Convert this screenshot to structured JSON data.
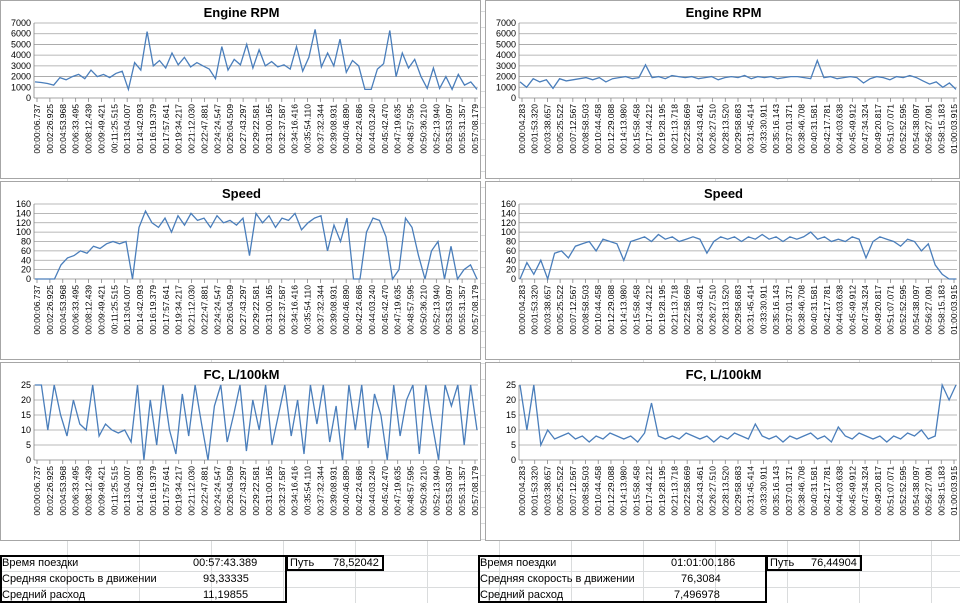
{
  "colors": {
    "line": "#4a7ebb",
    "grid": "#868686",
    "text": "#000000"
  },
  "left_ticks": [
    "00:00:06.737",
    "00:02:26.925",
    "00:04:53.968",
    "00:06:33.495",
    "00:08:12.439",
    "00:09:49.421",
    "00:11:25.515",
    "00:13:04.007",
    "00:14:42.093",
    "00:16:19.379",
    "00:17:57.641",
    "00:19:34.217",
    "00:21:12.030",
    "00:22:47.881",
    "00:24:24.547",
    "00:26:04.509",
    "00:27:43.297",
    "00:29:22.581",
    "00:31:00.165",
    "00:32:37.587",
    "00:34:16.416",
    "00:35:54.110",
    "00:37:32.344",
    "00:39:08.931",
    "00:40:46.890",
    "00:42:24.686",
    "00:44:03.240",
    "00:45:42.470",
    "00:47:19.635",
    "00:48:57.595",
    "00:50:36.210",
    "00:52:13.940",
    "00:53:53.097",
    "00:55:31.357",
    "00:57:08.179"
  ],
  "right_ticks": [
    "00:00:04.283",
    "00:01:53.320",
    "00:03:38.657",
    "00:05:25.522",
    "00:07:12.567",
    "00:08:58.503",
    "00:10:44.458",
    "00:12:29.088",
    "00:14:13.980",
    "00:15:58.458",
    "00:17:44.212",
    "00:19:28.195",
    "00:21:13.718",
    "00:22:58.669",
    "00:24:43.461",
    "00:26:27.510",
    "00:28:13.520",
    "00:29:58.683",
    "00:31:45.414",
    "00:33:30.911",
    "00:35:16.143",
    "00:37:01.371",
    "00:38:46.708",
    "00:40:31.581",
    "00:42:17.781",
    "00:44:03.638",
    "00:45:49.912",
    "00:47:34.324",
    "00:49:20.817",
    "00:51:07.071",
    "00:52:52.595",
    "00:54:38.097",
    "00:56:27.091",
    "00:58:15.183",
    "01:00:03.915"
  ],
  "chart_data": [
    {
      "id": "rpm-left",
      "type": "line",
      "title": "Engine RPM",
      "ticks": "left_ticks",
      "ylim": [
        0,
        7000
      ],
      "ystep": 1000,
      "yticks": [
        "0",
        "1000",
        "2000",
        "3000",
        "4000",
        "5000",
        "6000",
        "7000"
      ],
      "values": [
        1500,
        1450,
        1350,
        1200,
        1900,
        1700,
        2000,
        2200,
        1800,
        2600,
        2000,
        2200,
        1900,
        2300,
        2500,
        800,
        3300,
        2600,
        6200,
        3000,
        3500,
        2800,
        4200,
        3100,
        3800,
        2900,
        3300,
        3000,
        2700,
        1800,
        4800,
        2600,
        3600,
        3100,
        5000,
        2800,
        4500,
        3000,
        3400,
        2900,
        3100,
        2700,
        4800,
        2500,
        3800,
        6400,
        2900,
        4200,
        3000,
        5500,
        2400,
        3500,
        3000,
        800,
        800,
        2700,
        3200,
        6300,
        2000,
        4200,
        2800,
        3600,
        2000,
        900,
        2800,
        900,
        2000,
        800,
        2200,
        1200,
        1500,
        800
      ]
    },
    {
      "id": "rpm-right",
      "type": "line",
      "title": "Engine RPM",
      "ticks": "right_ticks",
      "ylim": [
        0,
        7000
      ],
      "ystep": 1000,
      "yticks": [
        "0",
        "1000",
        "2000",
        "3000",
        "4000",
        "5000",
        "6000",
        "7000"
      ],
      "values": [
        1500,
        1000,
        1800,
        1500,
        1700,
        900,
        1800,
        1600,
        1700,
        1800,
        1900,
        1700,
        1900,
        1500,
        1800,
        1900,
        2000,
        1800,
        1900,
        3100,
        1900,
        2000,
        1800,
        2100,
        2000,
        1900,
        2000,
        1800,
        1900,
        2000,
        1700,
        1900,
        2000,
        1900,
        2100,
        1800,
        2000,
        1900,
        2000,
        1800,
        1900,
        2000,
        2000,
        1900,
        1800,
        3500,
        1900,
        2000,
        1800,
        1900,
        2000,
        1900,
        1400,
        1800,
        2000,
        1900,
        1700,
        2000,
        1900,
        2100,
        1900,
        1600,
        1300,
        1500,
        1000,
        1400,
        800
      ]
    },
    {
      "id": "speed-left",
      "type": "line",
      "title": "Speed",
      "ticks": "left_ticks",
      "ylim": [
        0,
        160
      ],
      "ystep": 20,
      "yticks": [
        "0",
        "20",
        "40",
        "60",
        "80",
        "100",
        "120",
        "140",
        "160"
      ],
      "values": [
        0,
        0,
        0,
        0,
        30,
        45,
        50,
        60,
        55,
        70,
        65,
        75,
        80,
        75,
        80,
        0,
        110,
        145,
        120,
        110,
        130,
        100,
        135,
        115,
        140,
        125,
        130,
        110,
        135,
        120,
        125,
        115,
        130,
        50,
        140,
        120,
        135,
        110,
        130,
        125,
        140,
        105,
        120,
        130,
        135,
        60,
        115,
        80,
        130,
        0,
        0,
        100,
        130,
        125,
        90,
        0,
        20,
        130,
        110,
        50,
        0,
        60,
        80,
        0,
        70,
        0,
        20,
        30,
        0
      ]
    },
    {
      "id": "speed-right",
      "type": "line",
      "title": "Speed",
      "ticks": "right_ticks",
      "ylim": [
        0,
        160
      ],
      "ystep": 20,
      "yticks": [
        "0",
        "20",
        "40",
        "60",
        "80",
        "100",
        "120",
        "140",
        "160"
      ],
      "values": [
        0,
        35,
        10,
        40,
        0,
        55,
        60,
        45,
        70,
        75,
        80,
        60,
        85,
        80,
        75,
        40,
        80,
        85,
        90,
        80,
        95,
        85,
        90,
        80,
        85,
        90,
        85,
        55,
        80,
        90,
        85,
        90,
        80,
        90,
        85,
        95,
        85,
        90,
        80,
        90,
        85,
        90,
        100,
        85,
        90,
        80,
        85,
        80,
        90,
        85,
        45,
        80,
        90,
        85,
        80,
        70,
        85,
        80,
        60,
        75,
        30,
        10,
        0,
        0
      ]
    },
    {
      "id": "fc-left",
      "type": "line",
      "title": "FC, L/100kM",
      "ticks": "left_ticks",
      "ylim": [
        0,
        25
      ],
      "ystep": 5,
      "yticks": [
        "0",
        "5",
        "10",
        "15",
        "20",
        "25"
      ],
      "values": [
        25,
        25,
        10,
        25,
        15,
        8,
        20,
        12,
        10,
        25,
        8,
        12,
        10,
        9,
        10,
        6,
        25,
        0,
        20,
        5,
        25,
        10,
        2,
        22,
        8,
        25,
        12,
        0,
        18,
        25,
        6,
        15,
        25,
        3,
        20,
        10,
        25,
        5,
        15,
        25,
        8,
        20,
        2,
        25,
        12,
        25,
        6,
        18,
        0,
        25,
        10,
        25,
        4,
        22,
        15,
        0,
        25,
        8,
        20,
        25,
        2,
        25,
        12,
        0,
        25,
        18,
        25,
        5,
        25,
        10
      ]
    },
    {
      "id": "fc-right",
      "type": "line",
      "title": "FC, L/100kM",
      "ticks": "right_ticks",
      "ylim": [
        0,
        25
      ],
      "ystep": 5,
      "yticks": [
        "0",
        "5",
        "10",
        "15",
        "20",
        "25"
      ],
      "values": [
        25,
        10,
        25,
        5,
        10,
        7,
        8,
        9,
        7,
        8,
        6,
        8,
        7,
        9,
        8,
        7,
        8,
        6,
        9,
        19,
        8,
        7,
        8,
        7,
        9,
        8,
        7,
        8,
        6,
        8,
        7,
        9,
        8,
        7,
        12,
        8,
        7,
        8,
        6,
        8,
        7,
        8,
        9,
        7,
        8,
        6,
        11,
        8,
        7,
        9,
        8,
        7,
        8,
        6,
        8,
        7,
        9,
        8,
        10,
        7,
        8,
        25,
        20,
        25
      ]
    }
  ],
  "summary_left": {
    "trip_time_label": "Время поездки",
    "trip_time": "00:57:43.389",
    "avg_speed_label": "Средняя скорость в движении",
    "avg_speed": "93,33335",
    "avg_fc_label": "Средний расход",
    "avg_fc": "11,19855",
    "distance_label": "Путь",
    "distance": "78,52042"
  },
  "summary_right": {
    "trip_time_label": "Время поездки",
    "trip_time": "01:01:00.186",
    "avg_speed_label": "Средняя скорость в движении",
    "avg_speed": "76,3084",
    "avg_fc_label": "Средний расход",
    "avg_fc": "7,496978",
    "distance_label": "Путь",
    "distance": "76,44904"
  }
}
